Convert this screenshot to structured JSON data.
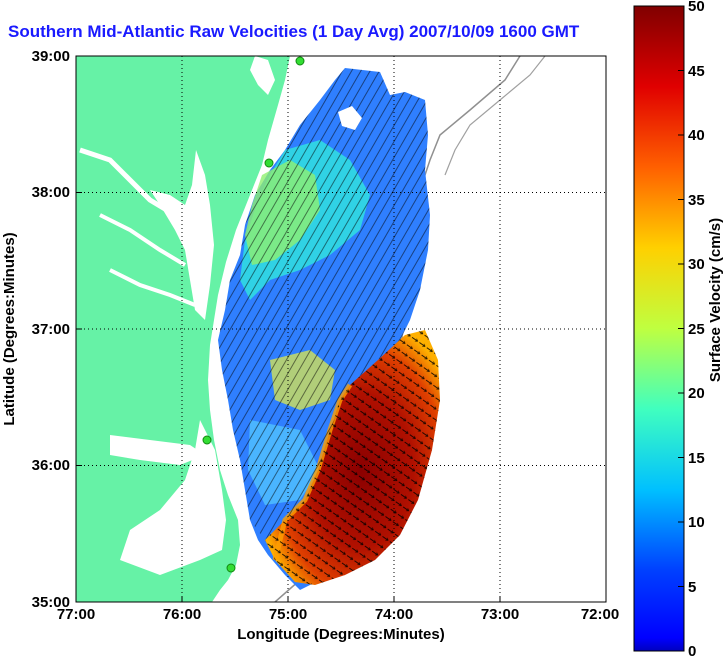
{
  "title": "Southern Mid-Atlantic Raw Velocities (1 Day Avg) 2007/10/09 1600 GMT",
  "map": {
    "xlabel": "Longitude (Degrees:Minutes)",
    "ylabel": "Latitude (Degrees:Minutes)",
    "lon_range": [
      -77,
      -72
    ],
    "lat_range": [
      35,
      39
    ],
    "x_ticks": [
      "77:00",
      "76:00",
      "75:00",
      "74:00",
      "73:00",
      "72:00"
    ],
    "y_ticks": [
      "39:00",
      "38:00",
      "37:00",
      "36:00",
      "35:00"
    ],
    "grid": "dotted",
    "land_color": "#66f2a6",
    "ocean_color": "#ffffff",
    "bathymetry_color": "#909090",
    "station_color": "#33dd33"
  },
  "colorbar": {
    "label": "Surface Velocity (cm/s)",
    "min": 0,
    "max": 50,
    "ticks": [
      "0",
      "5",
      "10",
      "15",
      "20",
      "25",
      "30",
      "35",
      "40",
      "45",
      "50"
    ],
    "colormap": "jet"
  }
}
